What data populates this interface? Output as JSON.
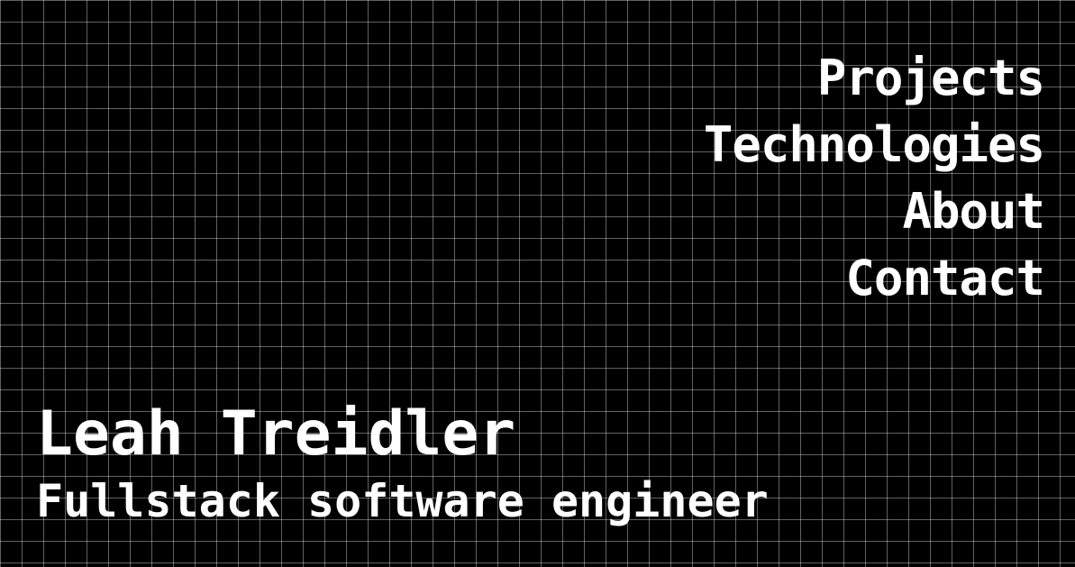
{
  "nav": {
    "items": [
      {
        "label": "Projects"
      },
      {
        "label": "Technologies"
      },
      {
        "label": "About"
      },
      {
        "label": "Contact"
      }
    ]
  },
  "hero": {
    "name": "Leah Treidler",
    "role": "Fullstack software engineer"
  },
  "colors": {
    "background": "#000000",
    "text": "#ffffff",
    "grid": "#616161"
  }
}
